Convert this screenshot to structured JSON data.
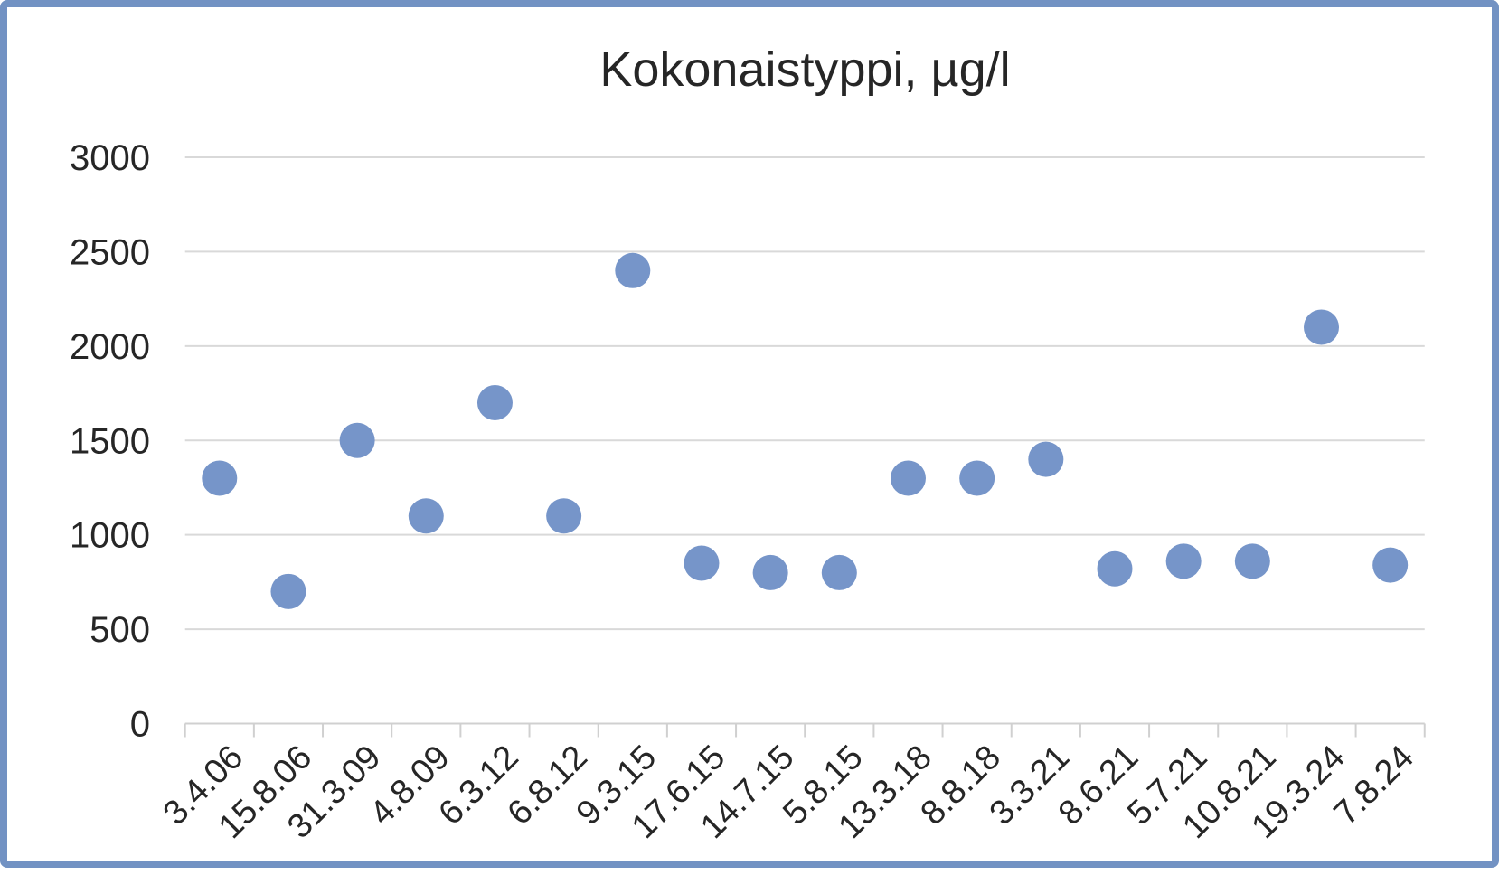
{
  "chart_data": {
    "type": "scatter",
    "title": "Kokonaistyppi, µg/l",
    "categories": [
      "3.4.06",
      "15.8.06",
      "31.3.09",
      "4.8.09",
      "6.3.12",
      "6.8.12",
      "9.3.15",
      "17.6.15",
      "14.7.15",
      "5.8.15",
      "13.3.18",
      "8.8.18",
      "3.3.21",
      "8.6.21",
      "5.7.21",
      "10.8.21",
      "19.3.24",
      "7.8.24"
    ],
    "values": [
      1300,
      700,
      1500,
      1100,
      1700,
      1100,
      2400,
      850,
      800,
      800,
      1300,
      1300,
      1400,
      820,
      860,
      860,
      2100,
      840
    ],
    "xlabel": "",
    "ylabel": "",
    "ylim": [
      0,
      3000
    ],
    "yticks": [
      0,
      500,
      1000,
      1500,
      2000,
      2500,
      3000
    ],
    "x_label_rotation_deg": 45,
    "grid": "horizontal",
    "legend": "none"
  },
  "colors": {
    "background": "#FFFFFF",
    "frame": "#7292C3",
    "marker": "#7695C9",
    "gridline": "#D9D9D9",
    "axis": "#D0D0D0",
    "title_text": "#262626",
    "tick_text": "#262626"
  }
}
